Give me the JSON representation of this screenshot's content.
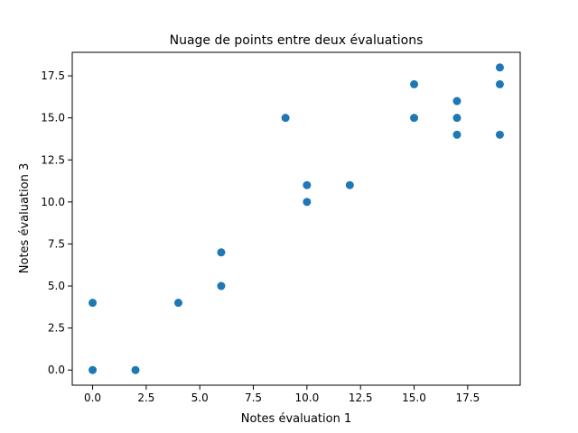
{
  "chart_data": {
    "type": "scatter",
    "title": "Nuage de points entre deux évaluations",
    "xlabel": "Notes évaluation 1",
    "ylabel": "Notes évaluation 3",
    "xlim": [
      -0.95,
      19.95
    ],
    "ylim": [
      -0.9,
      18.9
    ],
    "x_ticks": [
      0.0,
      2.5,
      5.0,
      7.5,
      10.0,
      12.5,
      15.0,
      17.5
    ],
    "x_tick_labels": [
      "0.0",
      "2.5",
      "5.0",
      "7.5",
      "10.0",
      "12.5",
      "15.0",
      "17.5"
    ],
    "y_ticks": [
      0.0,
      2.5,
      5.0,
      7.5,
      10.0,
      12.5,
      15.0,
      17.5
    ],
    "y_tick_labels": [
      "0.0",
      "2.5",
      "5.0",
      "7.5",
      "10.0",
      "12.5",
      "15.0",
      "17.5"
    ],
    "grid": false,
    "marker_color": "#1f77b4",
    "series": [
      {
        "points": [
          {
            "x": 0,
            "y": 4
          },
          {
            "x": 0,
            "y": 0
          },
          {
            "x": 2,
            "y": 0
          },
          {
            "x": 4,
            "y": 4
          },
          {
            "x": 6,
            "y": 5
          },
          {
            "x": 6,
            "y": 7
          },
          {
            "x": 9,
            "y": 15
          },
          {
            "x": 10,
            "y": 11
          },
          {
            "x": 10,
            "y": 10
          },
          {
            "x": 12,
            "y": 11
          },
          {
            "x": 15,
            "y": 17
          },
          {
            "x": 15,
            "y": 15
          },
          {
            "x": 17,
            "y": 16
          },
          {
            "x": 17,
            "y": 15
          },
          {
            "x": 17,
            "y": 14
          },
          {
            "x": 19,
            "y": 18
          },
          {
            "x": 19,
            "y": 17
          },
          {
            "x": 19,
            "y": 14
          }
        ]
      }
    ]
  }
}
